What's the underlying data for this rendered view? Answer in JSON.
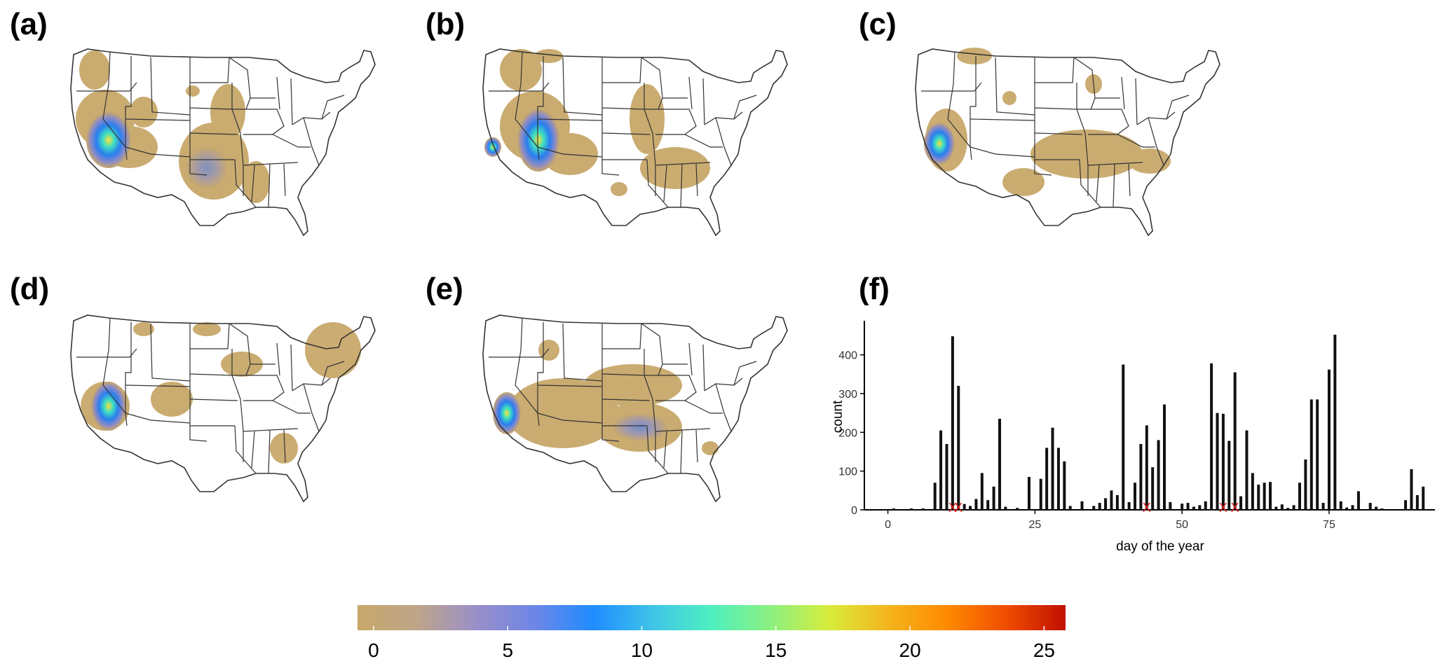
{
  "panels": {
    "a": "(a)",
    "b": "(b)",
    "c": "(c)",
    "d": "(d)",
    "e": "(e)",
    "f": "(f)"
  },
  "colors": {
    "low": "#c8a86a",
    "mid_purple": "#8a8ac8",
    "blue": "#3b82f6",
    "border": "#333333",
    "bar": "#111111",
    "marker": "#e0201c"
  },
  "chart_data": [
    {
      "type": "bar",
      "panel": "(f)",
      "xlabel": "day of the year",
      "ylabel": "count",
      "xlim": [
        -4,
        93
      ],
      "ylim": [
        0,
        470
      ],
      "xticks": [
        0,
        25,
        50,
        75
      ],
      "yticks": [
        0,
        100,
        200,
        300,
        400
      ],
      "x": [
        1,
        4,
        6,
        8,
        9,
        10,
        11,
        12,
        13,
        14,
        15,
        16,
        17,
        18,
        19,
        20,
        22,
        24,
        26,
        27,
        28,
        29,
        30,
        31,
        33,
        35,
        36,
        37,
        38,
        39,
        40,
        41,
        42,
        43,
        44,
        45,
        46,
        47,
        48,
        50,
        51,
        52,
        53,
        54,
        55,
        56,
        57,
        58,
        59,
        60,
        61,
        62,
        63,
        64,
        65,
        66,
        67,
        68,
        69,
        70,
        71,
        72,
        73,
        74,
        75,
        76,
        77,
        78,
        79,
        80,
        82,
        83,
        84,
        88,
        89,
        90,
        91
      ],
      "values": [
        3,
        2,
        3,
        70,
        205,
        170,
        448,
        320,
        15,
        10,
        28,
        95,
        25,
        60,
        235,
        8,
        5,
        85,
        80,
        160,
        212,
        160,
        125,
        10,
        22,
        10,
        18,
        30,
        50,
        38,
        375,
        20,
        70,
        170,
        218,
        110,
        180,
        272,
        20,
        16,
        18,
        8,
        12,
        22,
        378,
        250,
        248,
        178,
        355,
        35,
        205,
        95,
        65,
        70,
        72,
        8,
        14,
        5,
        12,
        70,
        130,
        285,
        285,
        18,
        362,
        452,
        22,
        6,
        12,
        48,
        18,
        8,
        3,
        25,
        105,
        38,
        60
      ],
      "markers_x": [
        11,
        12,
        44,
        57,
        59
      ],
      "marker_symbol": "X"
    },
    {
      "type": "colorbar",
      "ticks": [
        0,
        5,
        10,
        15,
        20,
        25
      ],
      "range": [
        -0.6,
        25.8
      ],
      "stops": [
        "#c8a86a",
        "#bfa58a",
        "#9a8fc8",
        "#6e86e6",
        "#1f8cff",
        "#3fc4e8",
        "#4ef0c0",
        "#8cf080",
        "#d8ec3c",
        "#f4b41c",
        "#ff8a00",
        "#f04c00",
        "#c01000"
      ]
    }
  ]
}
